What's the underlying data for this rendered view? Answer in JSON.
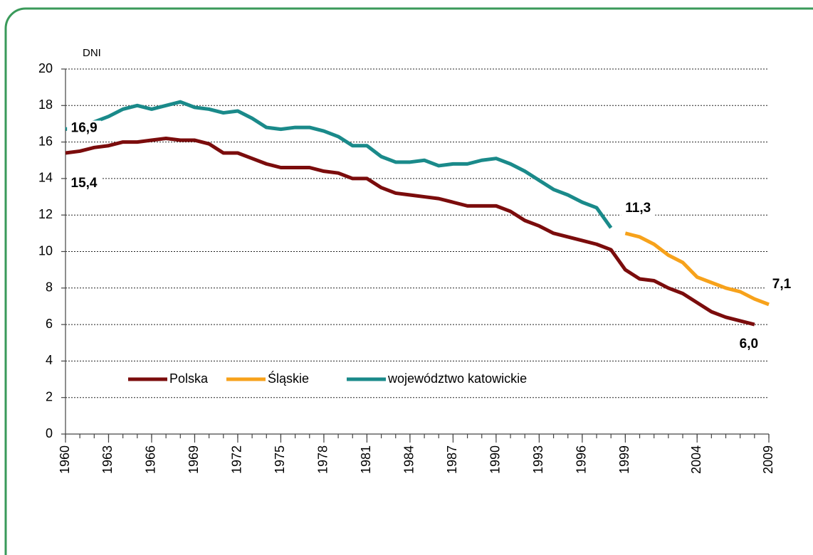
{
  "chart_data": {
    "type": "line",
    "y_label": "DNI",
    "x": [
      1960,
      1961,
      1962,
      1963,
      1964,
      1965,
      1966,
      1967,
      1968,
      1969,
      1970,
      1971,
      1972,
      1973,
      1974,
      1975,
      1976,
      1977,
      1978,
      1979,
      1980,
      1981,
      1982,
      1983,
      1984,
      1985,
      1986,
      1987,
      1988,
      1989,
      1990,
      1991,
      1992,
      1993,
      1994,
      1995,
      1996,
      1997,
      1998,
      1999,
      2000,
      2001,
      2002,
      2003,
      2004,
      2005,
      2006,
      2007,
      2008,
      2009
    ],
    "xlim": [
      1960,
      2009
    ],
    "xticks": [
      1960,
      1963,
      1966,
      1969,
      1972,
      1975,
      1978,
      1981,
      1984,
      1987,
      1990,
      1993,
      1996,
      1999,
      2004,
      2009
    ],
    "ylim": [
      0,
      20
    ],
    "yticks": [
      0,
      2,
      4,
      6,
      8,
      10,
      12,
      14,
      16,
      18,
      20
    ],
    "grid": true,
    "legend": "lower-left",
    "series": [
      {
        "name": "Polska",
        "color": "#7b0c0c",
        "values": [
          15.4,
          15.5,
          15.7,
          15.8,
          16.0,
          16.0,
          16.1,
          16.2,
          16.1,
          16.1,
          15.9,
          15.4,
          15.4,
          15.1,
          14.8,
          14.6,
          14.6,
          14.6,
          14.4,
          14.3,
          14.0,
          14.0,
          13.5,
          13.2,
          13.1,
          13.0,
          12.9,
          12.7,
          12.5,
          12.5,
          12.5,
          12.2,
          11.7,
          11.4,
          11.0,
          10.8,
          10.6,
          10.4,
          10.1,
          9.0,
          8.5,
          8.4,
          8.0,
          7.7,
          7.2,
          6.7,
          6.4,
          6.2,
          6.0,
          null
        ],
        "value_labels": [
          "15,4",
          null,
          null,
          null,
          null,
          null,
          null,
          null,
          null,
          null,
          null,
          null,
          null,
          null,
          null,
          null,
          null,
          null,
          null,
          null,
          null,
          null,
          null,
          null,
          null,
          null,
          null,
          null,
          null,
          null,
          null,
          null,
          null,
          null,
          null,
          null,
          null,
          null,
          null,
          null,
          null,
          null,
          null,
          null,
          null,
          null,
          null,
          null,
          "6,0",
          null
        ]
      },
      {
        "name": "Śląskie",
        "color": "#f7a21b",
        "values": [
          null,
          null,
          null,
          null,
          null,
          null,
          null,
          null,
          null,
          null,
          null,
          null,
          null,
          null,
          null,
          null,
          null,
          null,
          null,
          null,
          null,
          null,
          null,
          null,
          null,
          null,
          null,
          null,
          null,
          null,
          null,
          null,
          null,
          null,
          null,
          null,
          null,
          null,
          null,
          11.0,
          10.8,
          10.4,
          9.8,
          9.4,
          8.6,
          8.3,
          8.0,
          7.8,
          7.4,
          7.1
        ],
        "value_labels": [
          null,
          null,
          null,
          null,
          null,
          null,
          null,
          null,
          null,
          null,
          null,
          null,
          null,
          null,
          null,
          null,
          null,
          null,
          null,
          null,
          null,
          null,
          null,
          null,
          null,
          null,
          null,
          null,
          null,
          null,
          null,
          null,
          null,
          null,
          null,
          null,
          null,
          null,
          null,
          null,
          null,
          null,
          null,
          null,
          null,
          null,
          null,
          null,
          null,
          "7,1"
        ]
      },
      {
        "name": "województwo katowickie",
        "color": "#1a8a8a",
        "values": [
          16.7,
          16.9,
          17.1,
          17.4,
          17.8,
          18.0,
          17.8,
          18.0,
          18.2,
          17.9,
          17.8,
          17.6,
          17.7,
          17.3,
          16.8,
          16.7,
          16.8,
          16.8,
          16.6,
          16.3,
          15.8,
          15.8,
          15.2,
          14.9,
          14.9,
          15.0,
          14.7,
          14.8,
          14.8,
          15.0,
          15.1,
          14.8,
          14.4,
          13.9,
          13.4,
          13.1,
          12.7,
          12.4,
          11.3,
          null,
          null,
          null,
          null,
          null,
          null,
          null,
          null,
          null,
          null,
          null
        ],
        "value_labels": [
          null,
          "16,9",
          null,
          null,
          null,
          null,
          null,
          null,
          null,
          null,
          null,
          null,
          null,
          null,
          null,
          null,
          null,
          null,
          null,
          null,
          null,
          null,
          null,
          null,
          null,
          null,
          null,
          null,
          null,
          null,
          null,
          null,
          null,
          null,
          null,
          null,
          null,
          null,
          "11,3",
          null,
          null,
          null,
          null,
          null,
          null,
          null,
          null,
          null,
          null,
          null
        ]
      }
    ]
  }
}
